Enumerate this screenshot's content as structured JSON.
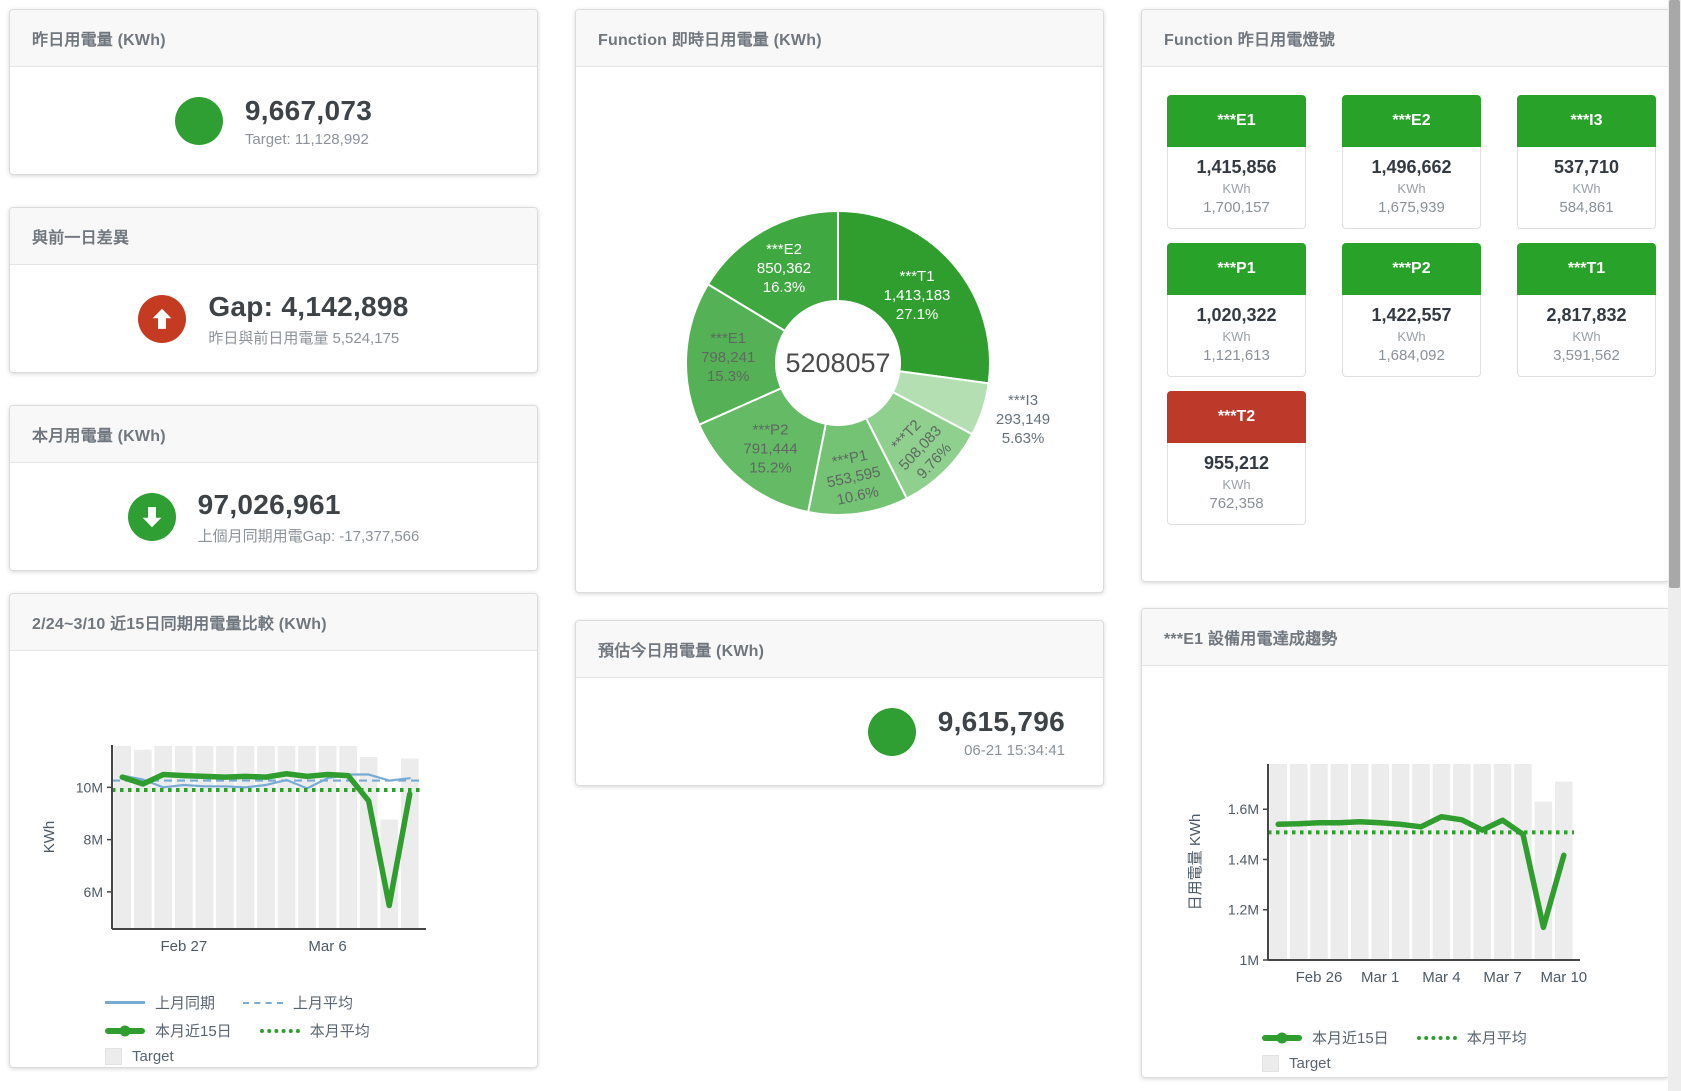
{
  "colors": {
    "green": "#2f9e33",
    "tile_green": "#28a228",
    "red_circle": "#c53b21",
    "tile_red": "#bd3a2a",
    "blue_line": "#78abd3",
    "green_line": "#2f9e2f",
    "target_bar": "#ececec",
    "axis": "#464646",
    "tick_text": "#4d5a66"
  },
  "cards": {
    "yesterday": {
      "title": "昨日用電量 (KWh)",
      "value": "9,667,073",
      "subtitle": "Target: 11,128,992"
    },
    "day_gap": {
      "title": "與前一日差異",
      "value": "Gap: 4,142,898",
      "subtitle": "昨日與前日用電量 5,524,175"
    },
    "month": {
      "title": "本月用電量 (KWh)",
      "value": "97,026,961",
      "subtitle": "上個月同期用電Gap: -17,377,566"
    },
    "estimate": {
      "title": "預估今日用電量 (KWh)",
      "value": "9,615,796",
      "subtitle": "06-21 15:34:41"
    },
    "realtime_donut": {
      "title": "Function 即時日用電量 (KWh)"
    },
    "lights": {
      "title": "Function 昨日用電燈號",
      "tiles": [
        {
          "label": "***E1",
          "value": "1,415,856",
          "unit": "KWh",
          "target": "1,700,157",
          "status": "green"
        },
        {
          "label": "***E2",
          "value": "1,496,662",
          "unit": "KWh",
          "target": "1,675,939",
          "status": "green"
        },
        {
          "label": "***I3",
          "value": "537,710",
          "unit": "KWh",
          "target": "584,861",
          "status": "green"
        },
        {
          "label": "***P1",
          "value": "1,020,322",
          "unit": "KWh",
          "target": "1,121,613",
          "status": "green"
        },
        {
          "label": "***P2",
          "value": "1,422,557",
          "unit": "KWh",
          "target": "1,684,092",
          "status": "green"
        },
        {
          "label": "***T1",
          "value": "2,817,832",
          "unit": "KWh",
          "target": "3,591,562",
          "status": "green"
        },
        {
          "label": "***T2",
          "value": "955,212",
          "unit": "KWh",
          "target": "762,358",
          "status": "red"
        }
      ]
    },
    "compare_chart": {
      "title": "2/24~3/10 近15日同期用電量比較 (KWh)"
    },
    "trend_chart": {
      "title": "***E1 設備用電達成趨勢"
    }
  },
  "chart_data": [
    {
      "id": "realtime_donut",
      "type": "pie",
      "title": "Function 即時日用電量 (KWh)",
      "center_total": "5208057",
      "segments": [
        {
          "name": "***T1",
          "value": 1413183,
          "display_value": "1,413,183",
          "pct": "27.1%",
          "color": "#2f9e2f",
          "text_color": "#ffffff",
          "label_r": 105,
          "rotate": 0
        },
        {
          "name": "***I3",
          "value": 293149,
          "display_value": "293,149",
          "pct": "5.63%",
          "color": "#b3dfb3",
          "text_color": "#66717b",
          "label_r": 193,
          "label_angle": 106.5,
          "rotate": 0,
          "outside": true
        },
        {
          "name": "***T2",
          "value": 508083,
          "display_value": "508,083",
          "pct": "9.76%",
          "color": "#8fd08f",
          "text_color": "#5d6a60",
          "label_r": 117,
          "label_angle": 136,
          "rotate": -47
        },
        {
          "name": "***P1",
          "value": 553595,
          "display_value": "553,595",
          "pct": "10.6%",
          "color": "#74c274",
          "text_color": "#5d6a60",
          "label_r": 114,
          "rotate": -12
        },
        {
          "name": "***P2",
          "value": 791444,
          "display_value": "791,444",
          "pct": "15.2%",
          "color": "#65ba65",
          "text_color": "#5d6a60",
          "label_r": 108,
          "rotate": 0
        },
        {
          "name": "***E1",
          "value": 798241,
          "display_value": "798,241",
          "pct": "15.3%",
          "color": "#55b155",
          "text_color": "#5d6a60",
          "label_r": 110,
          "rotate": 0
        },
        {
          "name": "***E2",
          "value": 850362,
          "display_value": "850,362",
          "pct": "16.3%",
          "color": "#40a840",
          "text_color": "#ffffff",
          "label_r": 110,
          "rotate": 0
        }
      ]
    },
    {
      "id": "compare_chart",
      "type": "line+bar",
      "title": "2/24~3/10 近15日同期用電量比較 (KWh)",
      "ylabel": "KWh",
      "ylim": [
        4.58,
        11.62
      ],
      "yticks": [
        {
          "v": 6,
          "label": "6M"
        },
        {
          "v": 8,
          "label": "8M"
        },
        {
          "v": 10,
          "label": "10M"
        }
      ],
      "xticks": [
        {
          "i": 3,
          "label": "Feb 27"
        },
        {
          "i": 10,
          "label": "Mar 6"
        }
      ],
      "target_bars": [
        11.58,
        11.44,
        11.58,
        11.58,
        11.58,
        11.58,
        11.58,
        11.58,
        11.58,
        11.58,
        11.58,
        11.58,
        11.16,
        8.77,
        11.1
      ],
      "series": [
        {
          "name": "上月同期",
          "style": "thin",
          "color": "#78abd3",
          "values": [
            10.45,
            10.3,
            10.0,
            10.09,
            10.04,
            10.04,
            10.0,
            10.09,
            10.28,
            9.96,
            10.35,
            10.49,
            10.49,
            10.26,
            10.35
          ]
        },
        {
          "name": "上月平均",
          "style": "dashed",
          "color": "#78abd3",
          "avg": 10.26
        },
        {
          "name": "本月近15日",
          "style": "thick",
          "color": "#2f9e2f",
          "values": [
            10.39,
            10.13,
            10.49,
            10.45,
            10.42,
            10.39,
            10.42,
            10.39,
            10.52,
            10.42,
            10.49,
            10.45,
            9.48,
            5.48,
            9.74
          ]
        },
        {
          "name": "本月平均",
          "style": "dotted",
          "color": "#2f9e2f",
          "avg": 9.9
        },
        {
          "name": "Target",
          "style": "bar",
          "color": "#ececec"
        }
      ],
      "legend_rows": [
        [
          {
            "label": "上月同期",
            "swatch": "thin",
            "color": "#78abd3"
          },
          {
            "label": "上月平均",
            "swatch": "dashed",
            "color": "#78abd3"
          }
        ],
        [
          {
            "label": "本月近15日",
            "swatch": "thick",
            "color": "#2f9e2f"
          },
          {
            "label": "本月平均",
            "swatch": "dotted",
            "color": "#2f9e2f"
          }
        ],
        [
          {
            "label": "Target",
            "swatch": "box",
            "color": "#ececec"
          }
        ]
      ]
    },
    {
      "id": "trend_chart",
      "type": "line+bar",
      "title": "***E1 設備用電達成趨勢",
      "ylabel": "日用電量 KWh",
      "ylim": [
        1.0,
        1.78
      ],
      "yticks": [
        {
          "v": 1,
          "label": "1M"
        },
        {
          "v": 1.2,
          "label": "1.2M"
        },
        {
          "v": 1.4,
          "label": "1.4M"
        },
        {
          "v": 1.6,
          "label": "1.6M"
        }
      ],
      "xticks": [
        {
          "i": 2,
          "label": "Feb 26"
        },
        {
          "i": 5,
          "label": "Mar 1"
        },
        {
          "i": 8,
          "label": "Mar 4"
        },
        {
          "i": 11,
          "label": "Mar 7"
        },
        {
          "i": 14,
          "label": "Mar 10"
        }
      ],
      "target_bars": [
        1.78,
        1.78,
        1.78,
        1.78,
        1.78,
        1.78,
        1.78,
        1.78,
        1.78,
        1.78,
        1.78,
        1.78,
        1.78,
        1.63,
        1.71
      ],
      "series": [
        {
          "name": "本月近15日",
          "style": "thick",
          "color": "#2f9e2f",
          "values": [
            1.54,
            1.542,
            1.546,
            1.546,
            1.55,
            1.546,
            1.54,
            1.53,
            1.57,
            1.558,
            1.517,
            1.556,
            1.5,
            1.13,
            1.417
          ]
        },
        {
          "name": "本月平均",
          "style": "dotted",
          "color": "#2f9e2f",
          "avg": 1.508
        },
        {
          "name": "Target",
          "style": "bar",
          "color": "#ececec"
        }
      ],
      "legend_rows": [
        [
          {
            "label": "本月近15日",
            "swatch": "thick",
            "color": "#2f9e2f"
          },
          {
            "label": "本月平均",
            "swatch": "dotted",
            "color": "#2f9e2f"
          }
        ],
        [
          {
            "label": "Target",
            "swatch": "box",
            "color": "#ececec"
          }
        ]
      ]
    }
  ]
}
